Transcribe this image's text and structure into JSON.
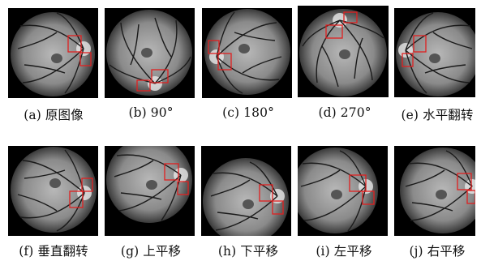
{
  "colors": {
    "fundus_background": "#000000",
    "vessel": "#1a1a1a",
    "box": "#e02020",
    "caption_text": "#111111"
  },
  "panels": [
    {
      "label": "(a) 原图像",
      "disc": "right"
    },
    {
      "label": "(b) 90°",
      "disc": "bottom"
    },
    {
      "label": "(c) 180°",
      "disc": "left"
    },
    {
      "label": "(d) 270°",
      "disc": "top"
    },
    {
      "label": "(e) 水平翻转",
      "disc": "left"
    },
    {
      "label": "(f) 垂直翻转",
      "disc": "right"
    },
    {
      "label": "(g) 上平移",
      "disc": "right"
    },
    {
      "label": "(h) 下平移",
      "disc": "right"
    },
    {
      "label": "(i) 左平移",
      "disc": "right"
    },
    {
      "label": "(j) 右平移",
      "disc": "right"
    }
  ]
}
